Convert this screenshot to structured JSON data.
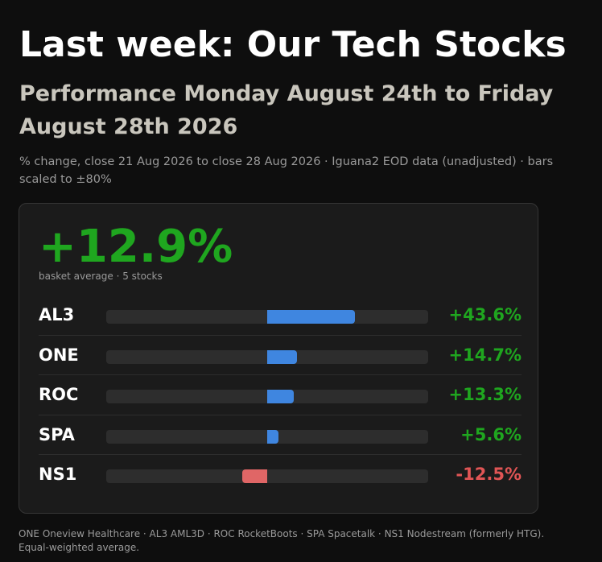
{
  "header": {
    "title": "Last week: Our Tech Stocks",
    "subtitle": "Performance Monday August 24th to Friday August 28th 2026",
    "caption": "% change, close 21 Aug 2026 to close 28 Aug 2026 · Iguana2 EOD data (unadjusted) · bars scaled to ±80%"
  },
  "summary": {
    "value": "+12.9%",
    "label": "basket average · 5 stocks"
  },
  "colors": {
    "positive_bar": "#3f86e0",
    "negative_bar": "#e06666",
    "positive_text": "#1fa61f",
    "negative_text": "#e05555"
  },
  "chart_data": {
    "type": "bar",
    "orientation": "horizontal",
    "categories": [
      "AL3",
      "ONE",
      "ROC",
      "SPA",
      "NS1"
    ],
    "values": [
      43.6,
      14.7,
      13.3,
      5.6,
      -12.5
    ],
    "value_labels": [
      "+43.6%",
      "+14.7%",
      "+13.3%",
      "+5.6%",
      "-12.5%"
    ],
    "xlim": [
      -80,
      80
    ]
  },
  "footer": "ONE Oneview Healthcare · AL3 AML3D · ROC RocketBoots · SPA Spacetalk · NS1 Nodestream (formerly HTG). Equal-weighted average."
}
